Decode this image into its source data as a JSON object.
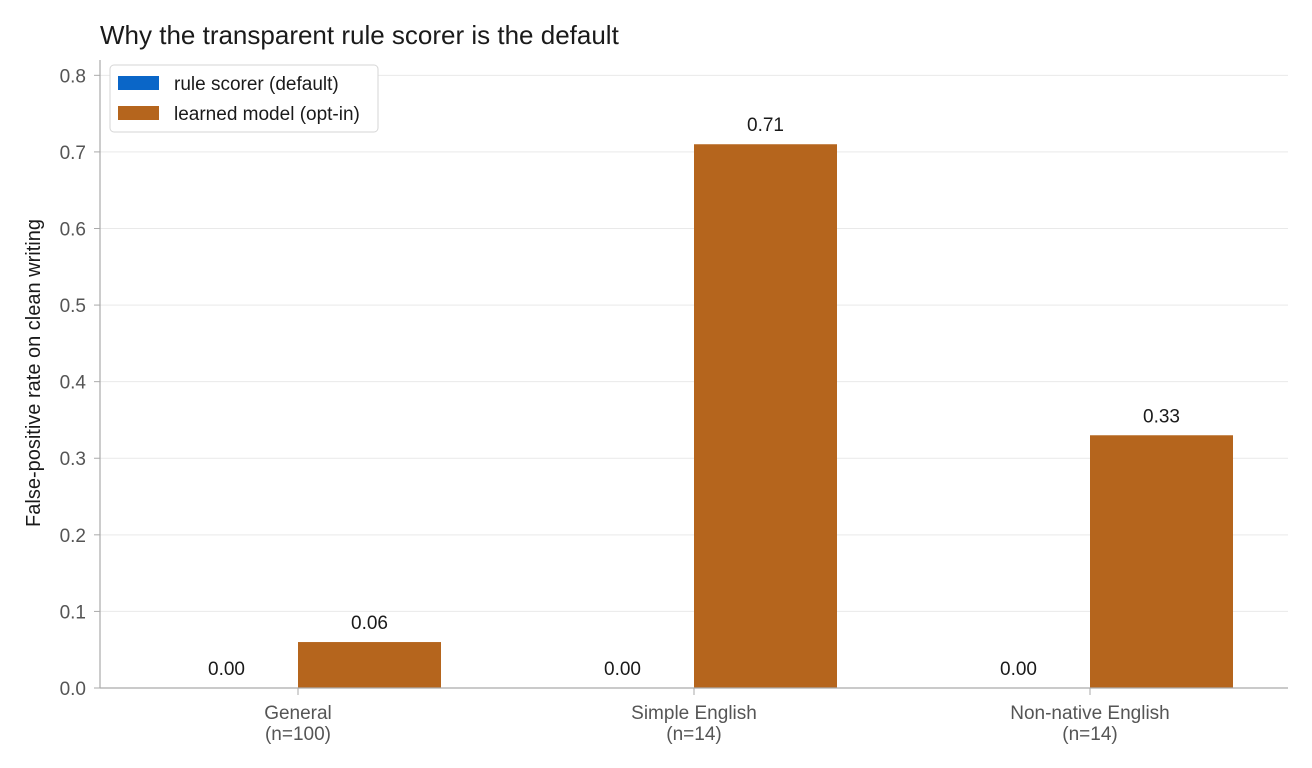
{
  "chart_data": {
    "type": "bar",
    "title": "Why the transparent rule scorer is the default",
    "xlabel": "",
    "ylabel": "False-positive rate on clean writing",
    "ylim": [
      0,
      0.82
    ],
    "yticks": [
      "0.0",
      "0.1",
      "0.2",
      "0.3",
      "0.4",
      "0.5",
      "0.6",
      "0.7",
      "0.8"
    ],
    "categories": [
      {
        "name": "General",
        "n": "(n=100)"
      },
      {
        "name": "Simple English",
        "n": "(n=14)"
      },
      {
        "name": "Non-native English",
        "n": "(n=14)"
      }
    ],
    "series": [
      {
        "name": "rule scorer (default)",
        "color": "#0a66c8",
        "values": [
          0.0,
          0.0,
          0.0
        ],
        "labels": [
          "0.00",
          "0.00",
          "0.00"
        ]
      },
      {
        "name": "learned model (opt-in)",
        "color": "#b5651d",
        "values": [
          0.06,
          0.71,
          0.33
        ],
        "labels": [
          "0.06",
          "0.71",
          "0.33"
        ]
      }
    ],
    "grid": true,
    "legend_position": "top-left"
  }
}
